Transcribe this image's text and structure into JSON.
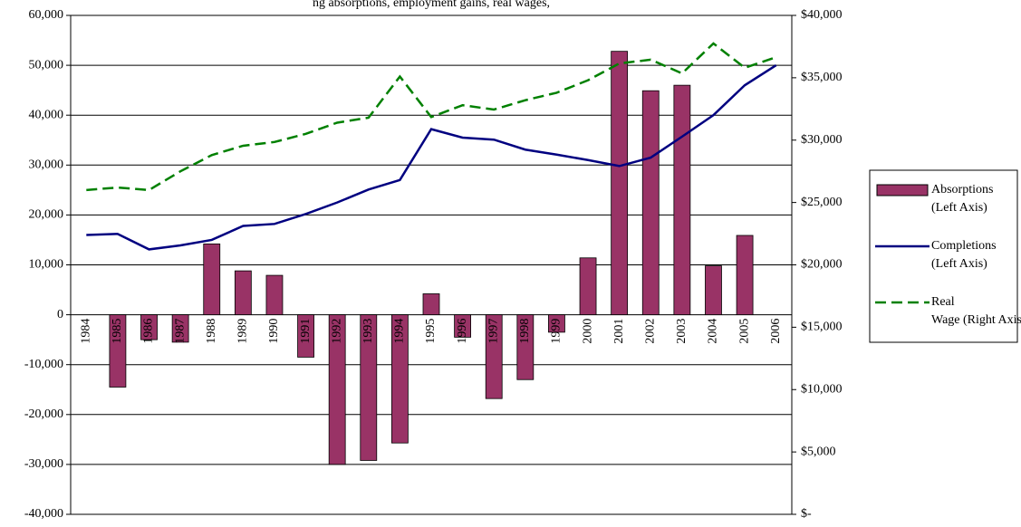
{
  "chart_data": {
    "type": "bar-line",
    "title": "ng absorptions, employment gains, real wages,",
    "categories": [
      "1984",
      "1985",
      "1986",
      "1987",
      "1988",
      "1989",
      "1990",
      "1991",
      "1992",
      "1993",
      "1994",
      "1995",
      "1996",
      "1997",
      "1998",
      "1999",
      "2000",
      "2001",
      "2002",
      "2003",
      "2004",
      "2005",
      "2006"
    ],
    "series": [
      {
        "name": "Absorptions (Left Axis)",
        "type": "bar",
        "color": "#993366",
        "values": [
          null,
          -14500,
          -5000,
          -5500,
          14200,
          8800,
          7900,
          -8500,
          -30000,
          -29200,
          -25700,
          4200,
          -4500,
          -16800,
          -13000,
          -3500,
          11400,
          52800,
          44900,
          46000,
          9800,
          15900,
          null
        ]
      },
      {
        "name": "Completions (Left Axis)",
        "type": "line",
        "color": "#000080",
        "values": [
          16000,
          16200,
          13100,
          13900,
          15000,
          17800,
          18200,
          20200,
          22500,
          25100,
          27000,
          37200,
          35500,
          35100,
          33100,
          32100,
          31000,
          29800,
          31500,
          35700,
          40000,
          46000,
          50000
        ]
      },
      {
        "name": "Real Wage (Right Axis)",
        "type": "line",
        "color": "#008000",
        "dashed": true,
        "axis": "y2",
        "values": [
          26000,
          26200,
          26000,
          27500,
          28800,
          29550,
          29850,
          30500,
          31400,
          31800,
          35100,
          31850,
          32800,
          32450,
          33200,
          33800,
          34800,
          36150,
          36450,
          35350,
          37750,
          35800,
          36650
        ]
      }
    ],
    "ylim": [
      -40000,
      60000
    ],
    "yticks": [
      {
        "value": -40000,
        "label": "-40,000"
      },
      {
        "value": -30000,
        "label": "-30,000"
      },
      {
        "value": -20000,
        "label": "-20,000"
      },
      {
        "value": -10000,
        "label": "-10,000"
      },
      0,
      {
        "value": 10000,
        "label": "10,000"
      },
      {
        "value": 20000,
        "label": "20,000"
      },
      {
        "value": 30000,
        "label": "30,000"
      },
      {
        "value": 40000,
        "label": "40,000"
      },
      {
        "value": 50000,
        "label": "50,000"
      },
      {
        "value": 60000,
        "label": "60,000"
      }
    ],
    "y2lim": [
      0,
      40000
    ],
    "y2ticks": [
      {
        "value": 0,
        "label": "$-"
      },
      {
        "value": 5000,
        "label": "$5,000"
      },
      {
        "value": 10000,
        "label": "$10,000"
      },
      {
        "value": 15000,
        "label": "$15,000"
      },
      {
        "value": 20000,
        "label": "$20,000"
      },
      {
        "value": 25000,
        "label": "$25,000"
      },
      {
        "value": 30000,
        "label": "$30,000"
      },
      {
        "value": 35000,
        "label": "$35,000"
      },
      {
        "value": 40000,
        "label": "$40,000"
      }
    ],
    "grid": true,
    "legend": "right"
  }
}
